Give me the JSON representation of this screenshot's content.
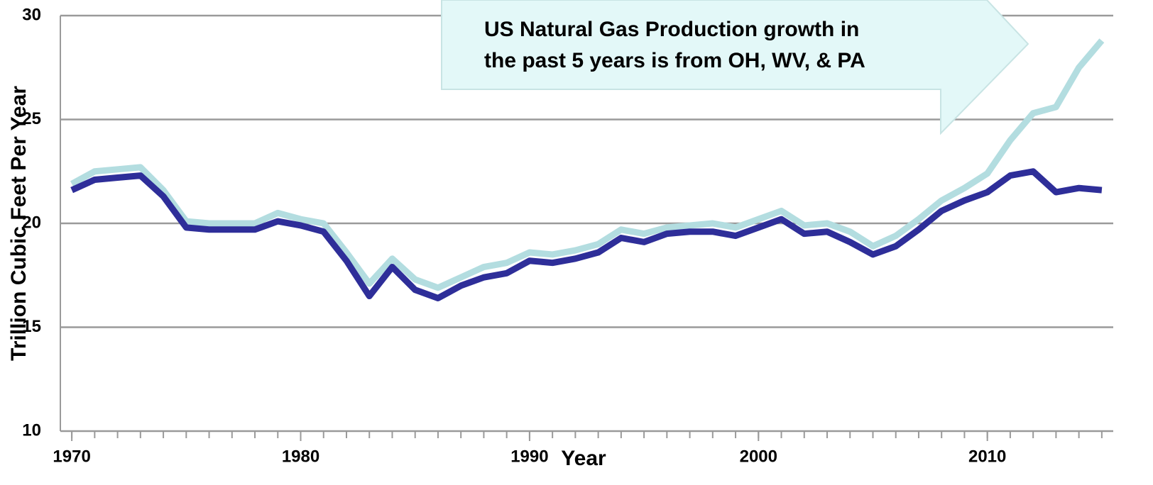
{
  "chart_data": {
    "type": "line",
    "annotation": [
      "US Natural Gas Production growth in",
      "the past 5 years is from OH, WV, & PA"
    ],
    "xlabel": "Year",
    "ylabel": "Trillion Cubic Feet Per Year",
    "x": [
      1970,
      1971,
      1972,
      1973,
      1974,
      1975,
      1976,
      1977,
      1978,
      1979,
      1980,
      1981,
      1982,
      1983,
      1984,
      1985,
      1986,
      1987,
      1988,
      1989,
      1990,
      1991,
      1992,
      1993,
      1994,
      1995,
      1996,
      1997,
      1998,
      1999,
      2000,
      2001,
      2002,
      2003,
      2004,
      2005,
      2006,
      2007,
      2008,
      2009,
      2010,
      2011,
      2012,
      2013,
      2014,
      2015
    ],
    "series": [
      {
        "color": "#b3dde0",
        "values": [
          21.9,
          22.5,
          22.6,
          22.7,
          21.6,
          20.1,
          20.0,
          20.0,
          20.0,
          20.5,
          20.2,
          20.0,
          18.6,
          17.1,
          18.3,
          17.3,
          16.9,
          17.4,
          17.9,
          18.1,
          18.6,
          18.5,
          18.7,
          19.0,
          19.7,
          19.5,
          19.8,
          19.9,
          20.0,
          19.8,
          20.2,
          20.6,
          19.9,
          20.0,
          19.6,
          18.9,
          19.4,
          20.2,
          21.1,
          21.7,
          22.4,
          24.0,
          25.3,
          25.6,
          27.5,
          28.8
        ]
      },
      {
        "color": "#2e2e99",
        "values": [
          21.6,
          22.1,
          22.2,
          22.3,
          21.3,
          19.8,
          19.7,
          19.7,
          19.7,
          20.1,
          19.9,
          19.6,
          18.2,
          16.5,
          17.9,
          16.8,
          16.4,
          17.0,
          17.4,
          17.6,
          18.2,
          18.1,
          18.3,
          18.6,
          19.3,
          19.1,
          19.5,
          19.6,
          19.6,
          19.4,
          19.8,
          20.2,
          19.5,
          19.6,
          19.1,
          18.5,
          18.9,
          19.7,
          20.6,
          21.1,
          21.5,
          22.3,
          22.5,
          21.5,
          21.7,
          21.6
        ]
      }
    ],
    "xlim": [
      1969.5,
      2015.5
    ],
    "xticks": [
      1970,
      1980,
      1990,
      2000,
      2010
    ],
    "ylim": [
      10,
      30
    ],
    "yticks": [
      10,
      15,
      20,
      25,
      30
    ],
    "grid": true
  }
}
